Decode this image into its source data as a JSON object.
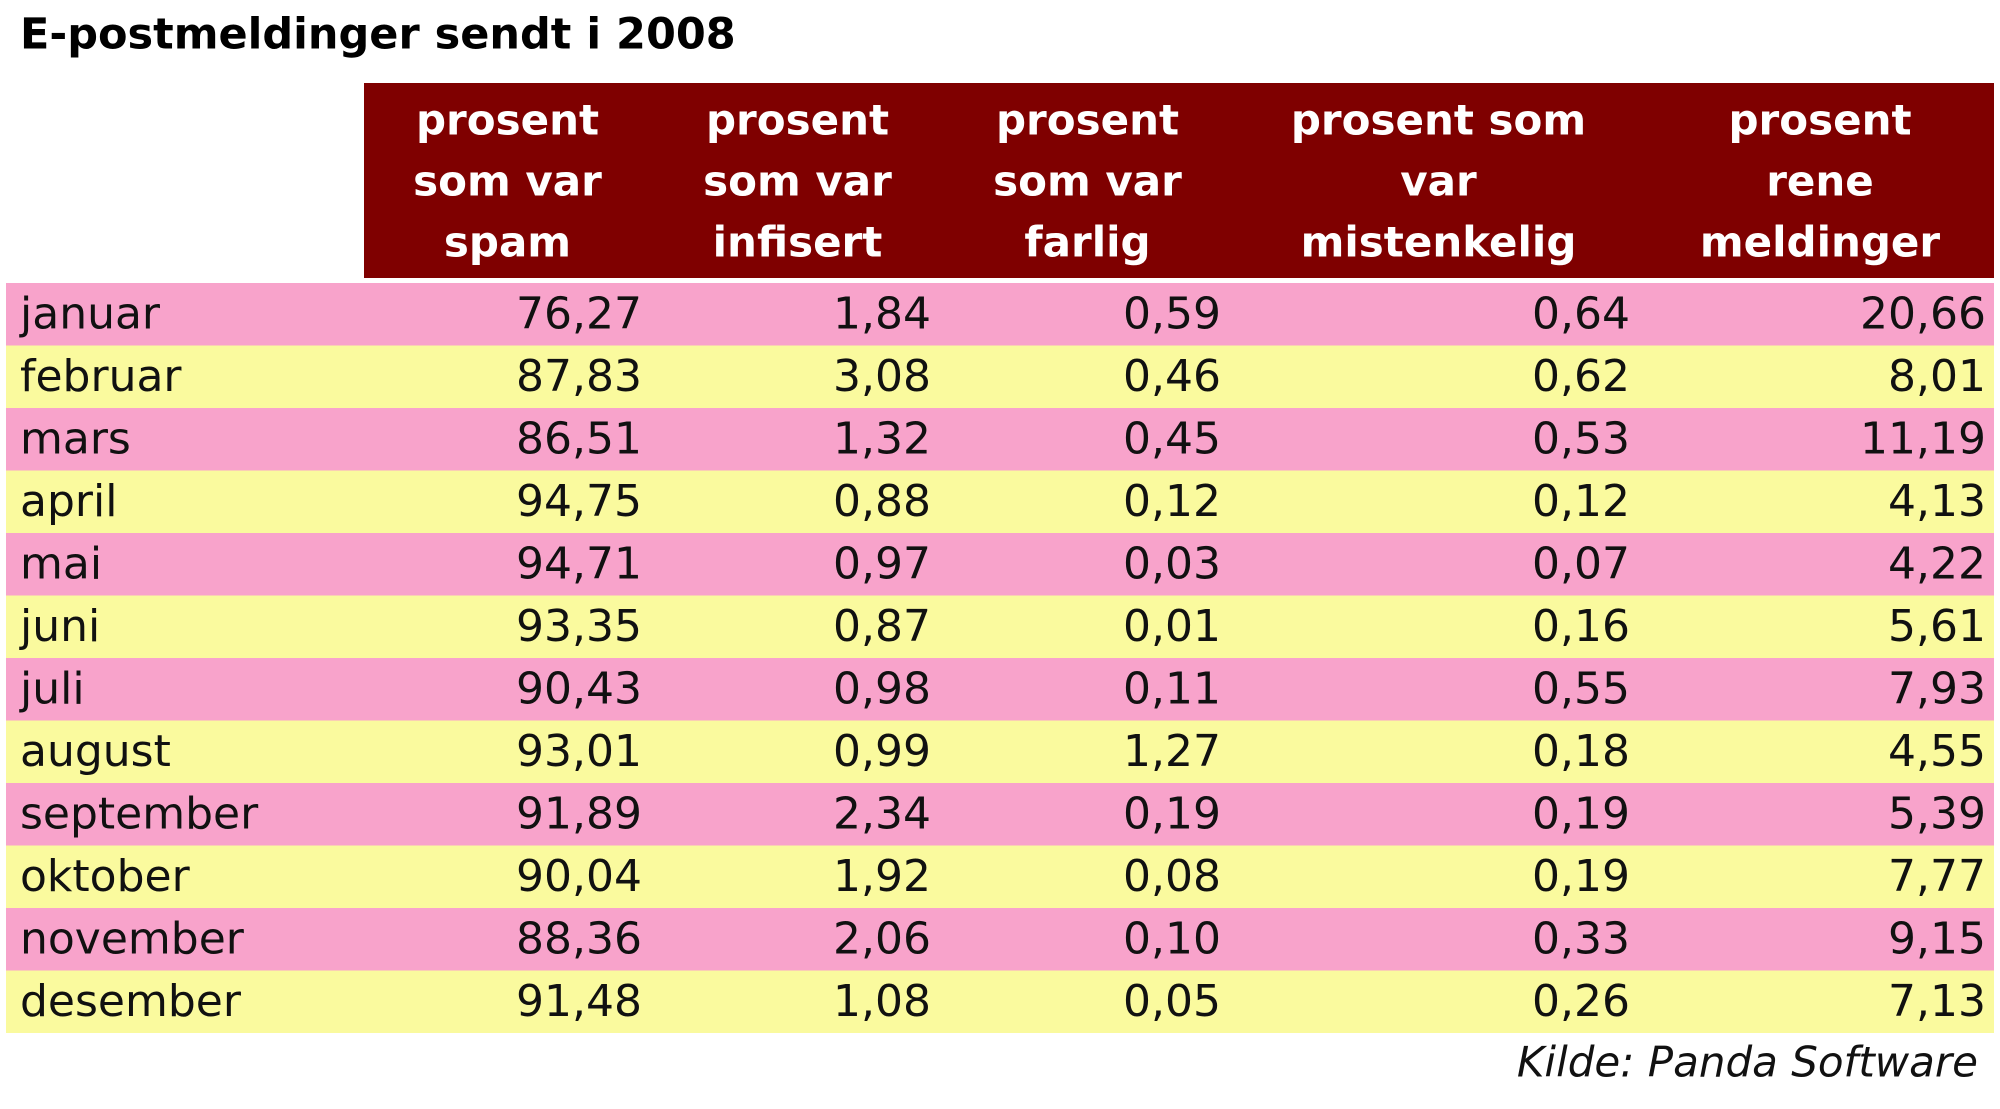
{
  "title": "E-postmeldinger sendt i 2008",
  "table": {
    "columns": [
      [
        "prosent",
        "som var",
        "spam"
      ],
      [
        "prosent",
        "som var",
        "infisert"
      ],
      [
        "prosent",
        "som var",
        "farlig"
      ],
      [
        "prosent som",
        "var",
        "mistenkelig"
      ],
      [
        "prosent",
        "rene",
        "meldinger"
      ]
    ],
    "rows": [
      [
        "januar",
        "76,27",
        "1,84",
        "0,59",
        "0,64",
        "20,66"
      ],
      [
        "februar",
        "87,83",
        "3,08",
        "0,46",
        "0,62",
        "8,01"
      ],
      [
        "mars",
        "86,51",
        "1,32",
        "0,45",
        "0,53",
        "11,19"
      ],
      [
        "april",
        "94,75",
        "0,88",
        "0,12",
        "0,12",
        "4,13"
      ],
      [
        "mai",
        "94,71",
        "0,97",
        "0,03",
        "0,07",
        "4,22"
      ],
      [
        "juni",
        "93,35",
        "0,87",
        "0,01",
        "0,16",
        "5,61"
      ],
      [
        "juli",
        "90,43",
        "0,98",
        "0,11",
        "0,55",
        "7,93"
      ],
      [
        "august",
        "93,01",
        "0,99",
        "1,27",
        "0,18",
        "4,55"
      ],
      [
        "september",
        "91,89",
        "2,34",
        "0,19",
        "0,19",
        "5,39"
      ],
      [
        "oktober",
        "90,04",
        "1,92",
        "0,08",
        "0,19",
        "7,77"
      ],
      [
        "november",
        "88,36",
        "2,06",
        "0,10",
        "0,33",
        "9,15"
      ],
      [
        "desember",
        "91,48",
        "1,08",
        "0,05",
        "0,26",
        "7,13"
      ]
    ]
  },
  "source": "Kilde: Panda Software"
}
